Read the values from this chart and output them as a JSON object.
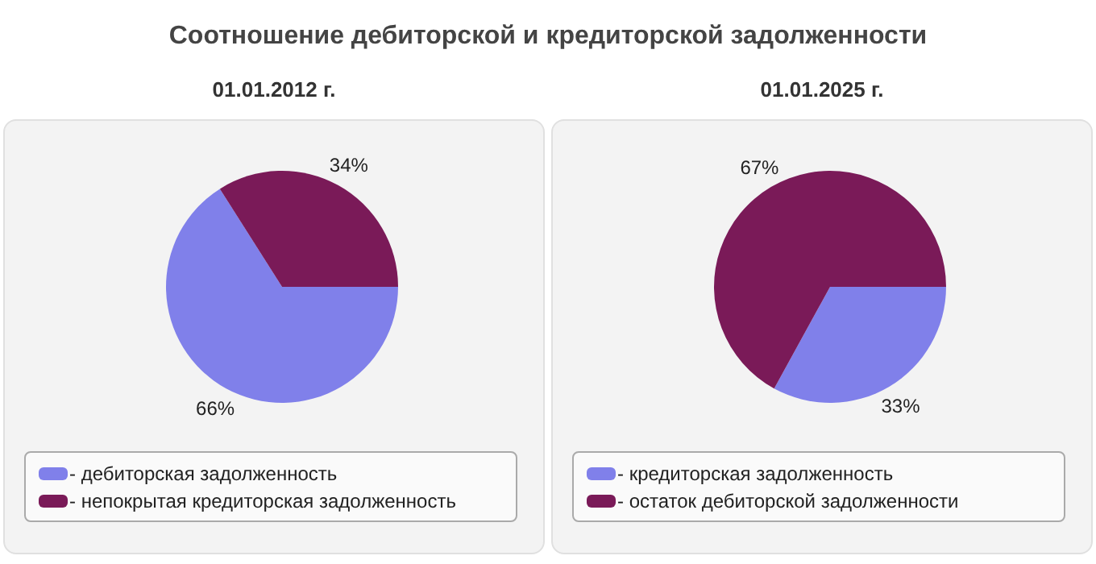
{
  "chart_data": [
    {
      "type": "pie",
      "title": "Соотношение дебиторской и кредиторской задолженности",
      "subtitle": "01.01.2012 г.",
      "categories": [
        "- дебиторская задолженность",
        "- непокрытая кредиторская задолженность"
      ],
      "values": [
        66,
        34
      ],
      "value_labels": [
        "66%",
        "34%"
      ],
      "colors": [
        "#8080ea",
        "#7a1a58"
      ],
      "legend": "bottom"
    },
    {
      "type": "pie",
      "subtitle": "01.01.2025 г.",
      "categories": [
        "- кредиторская задолженность",
        "- остаток дебиторской задолженности"
      ],
      "values": [
        33,
        67
      ],
      "value_labels": [
        "33%",
        "67%"
      ],
      "colors": [
        "#8080ea",
        "#7a1a58"
      ],
      "legend": "bottom"
    }
  ]
}
